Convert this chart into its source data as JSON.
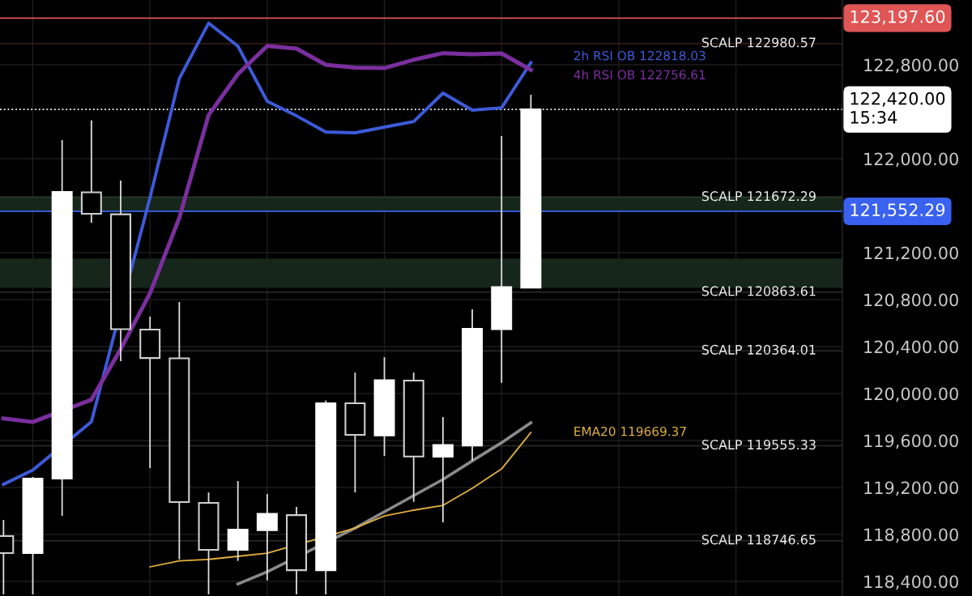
{
  "chart_data": {
    "type": "candlestick",
    "categories": [
      null,
      null,
      null,
      null,
      null,
      null,
      null,
      null,
      null,
      null,
      null,
      null,
      null,
      null,
      null,
      null,
      null,
      null,
      null
    ],
    "ohlc": [
      [
        118786,
        118924,
        118290,
        118641
      ],
      [
        118641,
        119290,
        118290,
        119276
      ],
      [
        119276,
        122159,
        118958,
        121717
      ],
      [
        121714,
        122327,
        121455,
        121531
      ],
      [
        121527,
        121814,
        120276,
        120548
      ],
      [
        120545,
        120655,
        119365,
        120303
      ],
      [
        120300,
        120779,
        118588,
        119076
      ],
      [
        119069,
        119158,
        118290,
        118669
      ],
      [
        118669,
        119255,
        118575,
        118841
      ],
      [
        118836,
        119145,
        118409,
        118975
      ],
      [
        118965,
        119034,
        118290,
        118496
      ],
      [
        118496,
        119941,
        118290,
        119917
      ],
      [
        119917,
        120179,
        119158,
        119648
      ],
      [
        119643,
        120310,
        119469,
        120114
      ],
      [
        120110,
        120179,
        119078,
        119464
      ],
      [
        119462,
        119800,
        118903,
        119562
      ],
      [
        119558,
        120717,
        119427,
        120552
      ],
      [
        120548,
        122193,
        120092,
        120906
      ],
      [
        120903,
        122545,
        120903,
        122420
      ]
    ],
    "series": [
      {
        "type": "line",
        "name": "2h RSI OB 122818.03",
        "color": "#3d5bd9",
        "values": [
          119227,
          119348,
          null,
          119761,
          null,
          121669,
          122683,
          123155,
          122959,
          122490,
          122365,
          122228,
          122221,
          122269,
          122317,
          122559,
          122414,
          122434,
          122818
        ]
      },
      {
        "type": "line",
        "name": "4h RSI OB 122756.61",
        "color": "#7b2f9e",
        "values": [
          119788,
          119758,
          null,
          119948,
          120379,
          120855,
          121496,
          122372,
          122721,
          122961,
          122938,
          122800,
          122776,
          122772,
          122843,
          122899,
          122890,
          122897,
          122757
        ]
      },
      {
        "type": "line",
        "color": "#8a8a8a",
        "values": [
          null,
          null,
          null,
          null,
          null,
          null,
          null,
          null,
          118379,
          118482,
          null,
          null,
          118855,
          118993,
          119131,
          119269,
          119427,
          119582,
          119752
        ]
      },
      {
        "type": "line",
        "name": "EMA20 119669.37",
        "color": "#e0b040",
        "values": [
          null,
          null,
          null,
          null,
          null,
          118524,
          118575,
          118588,
          118614,
          118641,
          null,
          null,
          118855,
          118958,
          119007,
          119048,
          119193,
          119358,
          119669
        ]
      }
    ],
    "ylim": [
      118276,
      123352
    ],
    "yticks": [
      {
        "value": 118400,
        "label": "118,400.00"
      },
      {
        "value": 118800,
        "label": "118,800.00"
      },
      {
        "value": 119200,
        "label": "119,200.00"
      },
      {
        "value": 119600,
        "label": "119,600.00"
      },
      {
        "value": 120000,
        "label": "120,000.00"
      },
      {
        "value": 120400,
        "label": "120,400.00"
      },
      {
        "value": 120800,
        "label": "120,800.00"
      },
      {
        "value": 121200,
        "label": "121,200.00"
      },
      {
        "value": 122000,
        "label": "122,000.00"
      },
      {
        "value": 122800,
        "label": "122,800.00"
      }
    ],
    "tick_labels": "y",
    "grid": true,
    "bands": [
      {
        "axis": "y",
        "from": 121550,
        "to": 121680,
        "color": "#16261a"
      },
      {
        "axis": "y",
        "from": 120900,
        "to": 121150,
        "color": "#16261a"
      }
    ],
    "ref_lines": [
      {
        "axis": "y",
        "value": 123197.6,
        "label": "123,197.60",
        "color": "#e05555",
        "line_style": "solid"
      },
      {
        "axis": "y",
        "value": 121552.29,
        "label": "121,552.29",
        "color": "#3a62f0",
        "line_style": "solid"
      },
      {
        "axis": "y",
        "value": 122420,
        "label": "122,420.00\n15:34",
        "color": "#ffffff",
        "line_style": "dotted"
      },
      {
        "axis": "y",
        "value": 122980.57,
        "color": "#4a2222",
        "line_style": "solid"
      },
      {
        "axis": "y",
        "value": 121672.29,
        "color": "#2e3a2e",
        "line_style": "solid"
      },
      {
        "axis": "y",
        "value": 120863.61,
        "color": "#2e2e2e",
        "line_style": "solid"
      },
      {
        "axis": "y",
        "value": 120364.01,
        "color": "#2e2e2e",
        "line_style": "solid"
      },
      {
        "axis": "y",
        "value": 119555.33,
        "color": "#2e2e2e",
        "line_style": "solid"
      },
      {
        "axis": "y",
        "value": 118746.65,
        "color": "#2e2e2e",
        "line_style": "solid"
      }
    ],
    "annotations": [
      {
        "text": "SCALP 122980.57",
        "y": 122980.57
      },
      {
        "text": "SCALP 121672.29",
        "y": 121672.29
      },
      {
        "text": "SCALP 120863.61",
        "y": 120863.61
      },
      {
        "text": "SCALP 120364.01",
        "y": 120364.01
      },
      {
        "text": "SCALP 119555.33",
        "y": 119555.33
      },
      {
        "text": "SCALP 118746.65",
        "y": 118746.65
      }
    ]
  }
}
